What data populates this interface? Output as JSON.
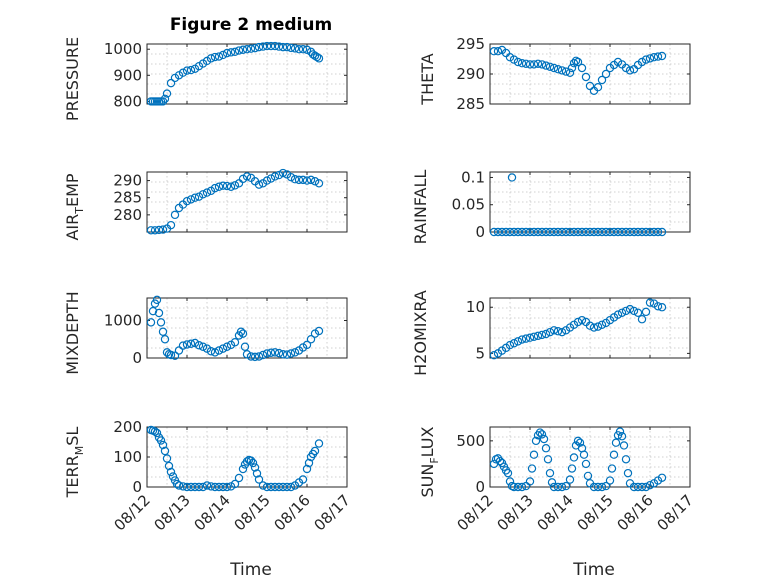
{
  "figure": {
    "title": "Figure 2 medium",
    "xlabel": "Time",
    "marker_color": "#0072BD",
    "grid": true,
    "xticks": [
      "08/12",
      "08/13",
      "08/14",
      "08/15",
      "08/16",
      "08/17"
    ]
  },
  "chart_data": [
    {
      "type": "scatter",
      "panel": "top-left",
      "title": "Figure 2 medium",
      "ylabel": "PRESSURE",
      "xlabel": "",
      "xlim": [
        0,
        5
      ],
      "ylim": [
        790,
        1020
      ],
      "yticks": [
        800,
        900,
        1000
      ],
      "x": [
        0.1,
        0.15,
        0.2,
        0.25,
        0.3,
        0.35,
        0.4,
        0.45,
        0.5,
        0.6,
        0.7,
        0.8,
        0.9,
        1.0,
        1.1,
        1.2,
        1.3,
        1.4,
        1.5,
        1.6,
        1.7,
        1.8,
        1.9,
        2.0,
        2.1,
        2.2,
        2.3,
        2.4,
        2.5,
        2.6,
        2.7,
        2.8,
        2.9,
        3.0,
        3.1,
        3.2,
        3.3,
        3.4,
        3.5,
        3.6,
        3.7,
        3.8,
        3.9,
        4.0,
        4.1,
        4.15,
        4.2,
        4.25,
        4.3
      ],
      "y": [
        800,
        800,
        800,
        800,
        800,
        800,
        800,
        810,
        830,
        870,
        890,
        900,
        910,
        918,
        920,
        925,
        935,
        945,
        955,
        965,
        970,
        972,
        978,
        985,
        988,
        990,
        995,
        998,
        1000,
        1002,
        1004,
        1008,
        1010,
        1012,
        1012,
        1012,
        1010,
        1008,
        1008,
        1005,
        1003,
        1000,
        1000,
        998,
        990,
        980,
        975,
        970,
        965
      ]
    },
    {
      "type": "scatter",
      "panel": "top-right",
      "ylabel": "THETA",
      "xlim": [
        0,
        5
      ],
      "ylim": [
        285,
        295
      ],
      "yticks": [
        285,
        290,
        295
      ],
      "x": [
        0.1,
        0.2,
        0.3,
        0.4,
        0.5,
        0.6,
        0.7,
        0.8,
        0.9,
        1.0,
        1.1,
        1.2,
        1.3,
        1.4,
        1.5,
        1.6,
        1.7,
        1.8,
        1.9,
        2.0,
        2.05,
        2.1,
        2.15,
        2.2,
        2.3,
        2.4,
        2.5,
        2.6,
        2.7,
        2.8,
        2.9,
        3.0,
        3.1,
        3.2,
        3.3,
        3.4,
        3.5,
        3.6,
        3.7,
        3.8,
        3.9,
        4.0,
        4.1,
        4.2,
        4.3
      ],
      "y": [
        293.8,
        293.8,
        294,
        293.5,
        292.8,
        292.4,
        292,
        291.8,
        291.7,
        291.6,
        291.6,
        291.7,
        291.6,
        291.4,
        291.2,
        291,
        290.8,
        290.6,
        290.4,
        290.2,
        291,
        291.8,
        292.2,
        292,
        291,
        289.5,
        288,
        287.2,
        287.8,
        289,
        290,
        291,
        291.5,
        292,
        291.6,
        291,
        290.6,
        290.8,
        291.5,
        292,
        292.4,
        292.6,
        292.8,
        292.9,
        293
      ]
    },
    {
      "type": "scatter",
      "panel": "row2-left",
      "ylabel": "AIR_TEMP",
      "xlim": [
        0,
        5
      ],
      "ylim": [
        275,
        292.5
      ],
      "yticks": [
        280,
        285,
        290
      ],
      "x": [
        0.1,
        0.2,
        0.3,
        0.4,
        0.5,
        0.6,
        0.7,
        0.8,
        0.9,
        1.0,
        1.1,
        1.2,
        1.3,
        1.4,
        1.5,
        1.6,
        1.7,
        1.8,
        1.9,
        2.0,
        2.1,
        2.2,
        2.3,
        2.4,
        2.5,
        2.6,
        2.7,
        2.8,
        2.9,
        3.0,
        3.1,
        3.2,
        3.3,
        3.4,
        3.5,
        3.6,
        3.7,
        3.8,
        3.9,
        4.0,
        4.1,
        4.2,
        4.3
      ],
      "y": [
        275.5,
        275.5,
        275.6,
        275.7,
        276,
        277,
        280,
        282,
        283,
        284,
        284.5,
        285,
        285.3,
        286,
        286.5,
        287,
        287.8,
        288.2,
        288.5,
        288.4,
        288.2,
        288.6,
        289.2,
        290.5,
        291.2,
        290.8,
        289.8,
        288.8,
        289.2,
        290,
        290.6,
        291.2,
        291.6,
        292.2,
        291.8,
        291,
        290.4,
        290.2,
        290.2,
        290,
        290.2,
        289.8,
        289.2
      ]
    },
    {
      "type": "scatter",
      "panel": "row2-right",
      "ylabel": "RAINFALL",
      "xlim": [
        0,
        5
      ],
      "ylim": [
        0,
        0.11
      ],
      "yticks": [
        0,
        0.05,
        0.1
      ],
      "x": [
        0.1,
        0.2,
        0.3,
        0.4,
        0.5,
        0.6,
        0.7,
        0.8,
        0.9,
        1.0,
        1.1,
        1.2,
        1.3,
        1.4,
        1.5,
        1.6,
        1.7,
        1.8,
        1.9,
        2.0,
        2.1,
        2.2,
        2.3,
        2.4,
        2.5,
        2.6,
        2.7,
        2.8,
        2.9,
        3.0,
        3.1,
        3.2,
        3.3,
        3.4,
        3.5,
        3.6,
        3.7,
        3.8,
        3.9,
        4.0,
        4.1,
        4.2,
        4.3,
        0.55
      ],
      "y": [
        0,
        0,
        0,
        0,
        0,
        0,
        0,
        0,
        0,
        0,
        0,
        0,
        0,
        0,
        0,
        0,
        0,
        0,
        0,
        0,
        0,
        0,
        0,
        0,
        0,
        0,
        0,
        0,
        0,
        0,
        0,
        0,
        0,
        0,
        0,
        0,
        0,
        0,
        0,
        0,
        0,
        0,
        0,
        0.1
      ]
    },
    {
      "type": "scatter",
      "panel": "row3-left",
      "ylabel": "MIXDEPTH",
      "xlim": [
        0,
        5
      ],
      "ylim": [
        0,
        1600
      ],
      "yticks": [
        0,
        1000
      ],
      "x": [
        0.1,
        0.15,
        0.2,
        0.25,
        0.3,
        0.35,
        0.4,
        0.45,
        0.5,
        0.55,
        0.6,
        0.7,
        0.8,
        0.9,
        1.0,
        1.1,
        1.2,
        1.3,
        1.4,
        1.5,
        1.6,
        1.7,
        1.8,
        1.9,
        2.0,
        2.1,
        2.2,
        2.3,
        2.35,
        2.4,
        2.45,
        2.5,
        2.6,
        2.7,
        2.8,
        2.9,
        3.0,
        3.1,
        3.2,
        3.3,
        3.4,
        3.5,
        3.6,
        3.7,
        3.8,
        3.9,
        4.0,
        4.1,
        4.2,
        4.3
      ],
      "y": [
        950,
        1250,
        1450,
        1550,
        1200,
        950,
        700,
        500,
        150,
        100,
        80,
        60,
        200,
        330,
        360,
        380,
        400,
        340,
        300,
        250,
        180,
        150,
        200,
        250,
        300,
        350,
        420,
        600,
        700,
        650,
        300,
        100,
        40,
        30,
        40,
        80,
        120,
        140,
        150,
        130,
        100,
        90,
        120,
        150,
        200,
        280,
        350,
        500,
        650,
        720
      ]
    },
    {
      "type": "scatter",
      "panel": "row3-right",
      "ylabel": "H2OMIXRA",
      "xlim": [
        0,
        5
      ],
      "ylim": [
        4.5,
        11
      ],
      "yticks": [
        5,
        10
      ],
      "x": [
        0.1,
        0.2,
        0.3,
        0.4,
        0.5,
        0.6,
        0.7,
        0.8,
        0.9,
        1.0,
        1.1,
        1.2,
        1.3,
        1.4,
        1.5,
        1.6,
        1.7,
        1.8,
        1.9,
        2.0,
        2.1,
        2.2,
        2.3,
        2.4,
        2.5,
        2.6,
        2.7,
        2.8,
        2.9,
        3.0,
        3.1,
        3.2,
        3.3,
        3.4,
        3.5,
        3.6,
        3.7,
        3.8,
        3.9,
        4.0,
        4.1,
        4.2,
        4.3
      ],
      "y": [
        4.8,
        5.0,
        5.3,
        5.6,
        5.9,
        6.1,
        6.3,
        6.5,
        6.6,
        6.7,
        6.8,
        6.9,
        7.0,
        7.1,
        7.3,
        7.5,
        7.4,
        7.3,
        7.5,
        7.8,
        8.1,
        8.4,
        8.6,
        8.4,
        8.0,
        7.8,
        7.9,
        8.1,
        8.3,
        8.6,
        8.9,
        9.2,
        9.4,
        9.6,
        9.8,
        9.6,
        9.4,
        8.7,
        9.5,
        10.5,
        10.4,
        10.1,
        10.0
      ]
    },
    {
      "type": "scatter",
      "panel": "bottom-left",
      "ylabel": "TERR_MSL",
      "xlim": [
        0,
        5
      ],
      "ylim": [
        0,
        200
      ],
      "yticks": [
        0,
        100,
        200
      ],
      "x": [
        0.1,
        0.15,
        0.2,
        0.25,
        0.3,
        0.35,
        0.4,
        0.45,
        0.5,
        0.55,
        0.6,
        0.65,
        0.7,
        0.75,
        0.8,
        0.9,
        1.0,
        1.1,
        1.2,
        1.3,
        1.4,
        1.5,
        1.6,
        1.7,
        1.8,
        1.9,
        2.0,
        2.1,
        2.2,
        2.3,
        2.4,
        2.45,
        2.5,
        2.55,
        2.6,
        2.65,
        2.7,
        2.75,
        2.8,
        2.9,
        3.0,
        3.1,
        3.2,
        3.3,
        3.4,
        3.5,
        3.6,
        3.7,
        3.8,
        3.9,
        4.0,
        4.05,
        4.1,
        4.15,
        4.2,
        4.3
      ],
      "y": [
        190,
        188,
        185,
        180,
        165,
        155,
        140,
        120,
        95,
        70,
        50,
        35,
        22,
        10,
        5,
        2,
        0,
        0,
        0,
        0,
        0,
        5,
        2,
        0,
        0,
        0,
        0,
        2,
        10,
        30,
        60,
        75,
        85,
        90,
        88,
        80,
        65,
        45,
        25,
        5,
        0,
        0,
        0,
        0,
        0,
        0,
        0,
        5,
        15,
        25,
        60,
        80,
        100,
        110,
        120,
        145
      ]
    },
    {
      "type": "scatter",
      "panel": "bottom-right",
      "ylabel": "SUN_FLUX",
      "xlim": [
        0,
        5
      ],
      "ylim": [
        0,
        650
      ],
      "yticks": [
        0,
        500
      ],
      "x": [
        0.1,
        0.15,
        0.2,
        0.25,
        0.3,
        0.35,
        0.4,
        0.45,
        0.5,
        0.55,
        0.6,
        0.7,
        0.8,
        0.9,
        1.0,
        1.05,
        1.1,
        1.15,
        1.2,
        1.25,
        1.3,
        1.35,
        1.4,
        1.45,
        1.5,
        1.55,
        1.6,
        1.7,
        1.8,
        1.9,
        2.0,
        2.05,
        2.1,
        2.15,
        2.2,
        2.25,
        2.3,
        2.35,
        2.4,
        2.45,
        2.5,
        2.6,
        2.7,
        2.8,
        2.9,
        3.0,
        3.05,
        3.1,
        3.15,
        3.2,
        3.25,
        3.3,
        3.35,
        3.4,
        3.45,
        3.5,
        3.6,
        3.7,
        3.8,
        3.9,
        4.0,
        4.1,
        4.2,
        4.3
      ],
      "y": [
        250,
        300,
        310,
        280,
        260,
        220,
        180,
        150,
        60,
        10,
        0,
        0,
        0,
        10,
        60,
        200,
        350,
        500,
        560,
        590,
        570,
        520,
        420,
        300,
        150,
        50,
        0,
        0,
        0,
        10,
        80,
        200,
        320,
        450,
        500,
        480,
        420,
        350,
        250,
        120,
        40,
        0,
        0,
        0,
        10,
        70,
        200,
        350,
        480,
        560,
        600,
        550,
        450,
        300,
        150,
        40,
        0,
        0,
        0,
        0,
        20,
        40,
        70,
        100
      ]
    }
  ]
}
